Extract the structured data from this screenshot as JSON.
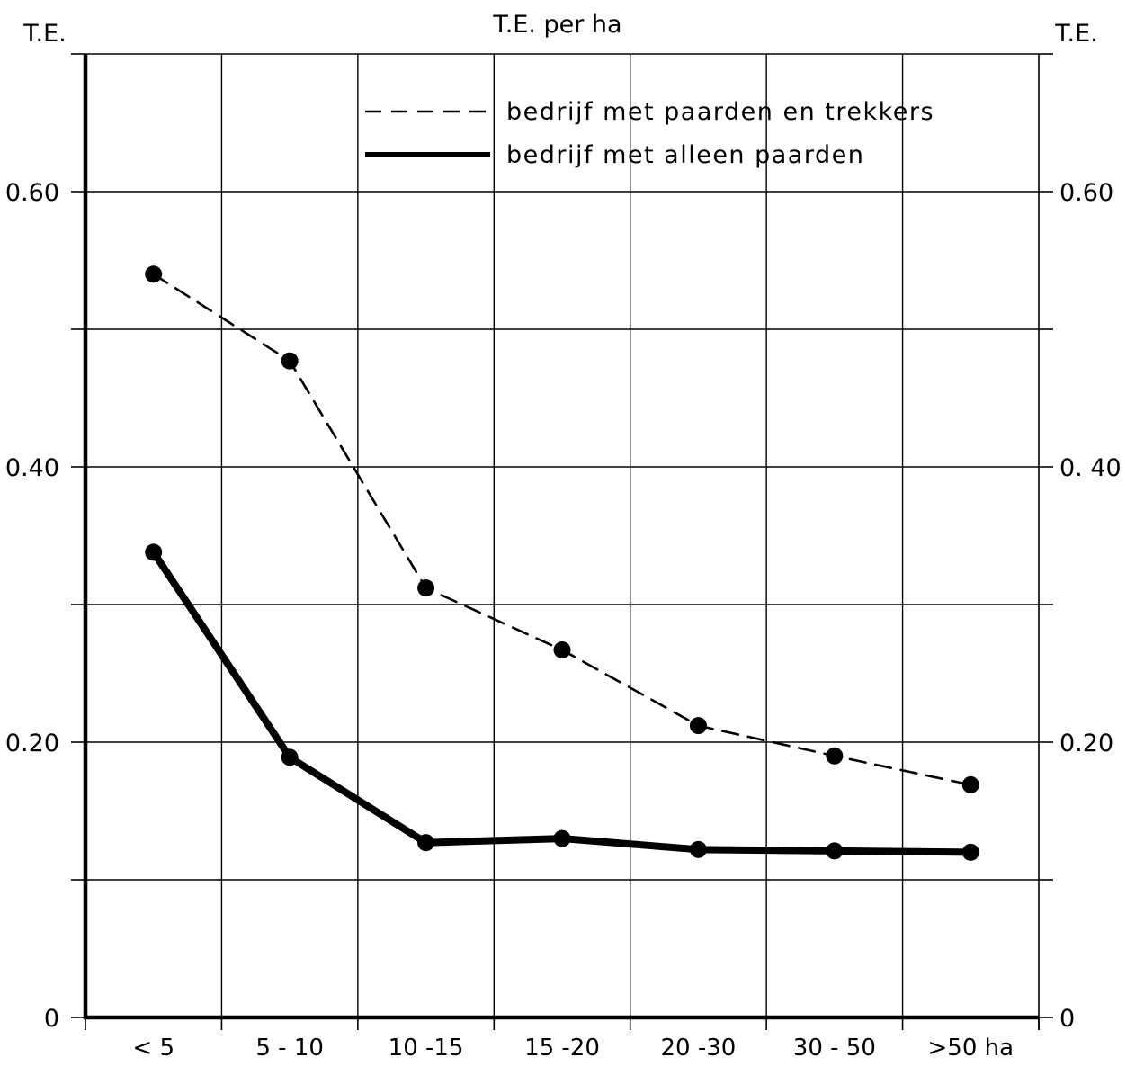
{
  "chart_data": {
    "type": "line",
    "title": "T.E. per ha",
    "ylabel_left": "T.E.",
    "ylabel_right": "T.E.",
    "xlabel": "",
    "categories": [
      "< 5",
      "5 - 10",
      "10 -15",
      "15 -20",
      "20 -30",
      "30 - 50",
      ">50 ha"
    ],
    "ylim": [
      0,
      0.7
    ],
    "yticks_left": [
      {
        "value": 0,
        "label": "0"
      },
      {
        "value": 0.2,
        "label": "0.20"
      },
      {
        "value": 0.4,
        "label": "0.40"
      },
      {
        "value": 0.6,
        "label": "0.60"
      }
    ],
    "yticks_right": [
      {
        "value": 0,
        "label": "0"
      },
      {
        "value": 0.2,
        "label": "0.20"
      },
      {
        "value": 0.4,
        "label": "0. 40"
      },
      {
        "value": 0.6,
        "label": "0.60"
      }
    ],
    "ygrid": [
      0.1,
      0.2,
      0.3,
      0.4,
      0.5,
      0.6,
      0.7
    ],
    "grid": true,
    "legend_position": "top-right",
    "series": [
      {
        "name": "bedrijf met paarden en trekkers",
        "style": "dashed",
        "color": "#000000",
        "values": [
          0.54,
          0.477,
          0.312,
          0.267,
          0.212,
          0.19,
          0.169
        ]
      },
      {
        "name": "bedrijf met alleen paarden",
        "style": "solid-thick",
        "color": "#000000",
        "values": [
          0.338,
          0.189,
          0.127,
          0.13,
          0.122,
          0.121,
          0.12
        ]
      }
    ]
  }
}
